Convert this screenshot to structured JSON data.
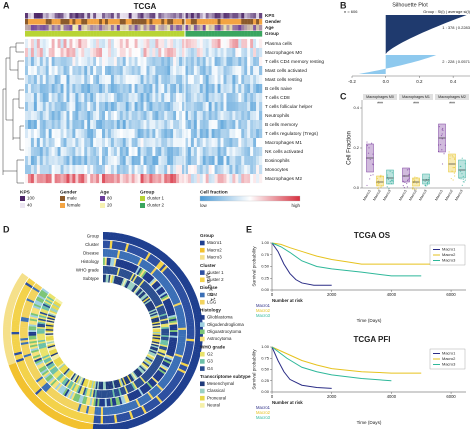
{
  "panels": [
    "A",
    "B",
    "C",
    "D",
    "E"
  ],
  "chart_data": [
    {
      "type": "heatmap",
      "title": "TCGA",
      "annotation_rows": [
        "KPS",
        "Gender",
        "Age",
        "Group"
      ],
      "rows": [
        "Plasma cells",
        "Macrophages M0",
        "T cells CD4 memory resting",
        "Mast cells activated",
        "Mast cells resting",
        "B cells naive",
        "T cells CD8",
        "T cells follicular helper",
        "Neutrophils",
        "B cells memory",
        "T cells regulatory (Tregs)",
        "Macrophages M1",
        "NK cells activated",
        "Eosinophils",
        "Monocytes",
        "Macrophages M2"
      ],
      "legend": [
        {
          "title": "KPS",
          "labels": [
            "100",
            "40"
          ],
          "colors": [
            "#4b2466",
            "#ece6f2"
          ]
        },
        {
          "title": "Gender",
          "labels": [
            "male",
            "female"
          ],
          "colors": [
            "#8b5a2b",
            "#f3a443"
          ]
        },
        {
          "title": "Age",
          "labels": [
            "80",
            "20"
          ],
          "colors": [
            "#6a3d9a",
            "#f6f1b2"
          ]
        },
        {
          "title": "Group",
          "labels": [
            "cluster 1",
            "cluster 2"
          ],
          "colors": [
            "#b8d435",
            "#3aa55f"
          ]
        }
      ],
      "scale": {
        "title": "Cell fraction",
        "labels": [
          "low",
          "high"
        ],
        "colors": [
          "#4a9ad6",
          "#ffffff",
          "#d7303f"
        ]
      }
    },
    {
      "type": "silhouette",
      "title": "Silhouette Plot",
      "subtitle": "n = 606",
      "header": "Group : Si(i) | average si(i)",
      "groups": [
        {
          "label": "1 : 378 | 0.2283",
          "color": "#1f3a6e"
        },
        {
          "label": "2 : 228 | 0.0571",
          "color": "#8ec9ee"
        }
      ],
      "xlim": [
        -0.2,
        0.5
      ],
      "xticks": [
        -0.2,
        {
          "value": 0,
          "label": "0.0"
        },
        0.2,
        0.4
      ]
    },
    {
      "type": "box",
      "ylabel": "Cell Fraction",
      "categories": [
        "Macrophages M0",
        "Macrophages M1",
        "Macrophages M2"
      ],
      "annotations": [
        "***",
        "***",
        "***"
      ],
      "series": [
        {
          "name": "Macro1",
          "color": "#7a3c9e",
          "q1": [
            0.08,
            0.03,
            0.18
          ],
          "median": [
            0.15,
            0.06,
            0.25
          ],
          "q3": [
            0.22,
            0.1,
            0.32
          ]
        },
        {
          "name": "Macro2",
          "color": "#e8c52a",
          "q1": [
            0.01,
            0.01,
            0.08
          ],
          "median": [
            0.03,
            0.03,
            0.12
          ],
          "q3": [
            0.06,
            0.05,
            0.17
          ]
        },
        {
          "name": "Macro3",
          "color": "#3ab0a0",
          "q1": [
            0.02,
            0.02,
            0.05
          ],
          "median": [
            0.05,
            0.04,
            0.09
          ],
          "q3": [
            0.09,
            0.07,
            0.14
          ]
        }
      ],
      "ylim": [
        0,
        0.4
      ],
      "yticks": [
        {
          "value": 0,
          "label": "0.0"
        },
        0.2,
        0.4
      ]
    },
    {
      "type": "circos",
      "rings": [
        "Group",
        "Cluster",
        "Disease",
        "Histology",
        "WHO grade",
        "Subtype"
      ],
      "arc_labels": [
        "M a c r o 1",
        "M a c r o 2",
        "M a c r o 3"
      ],
      "legend": [
        {
          "title": "Group",
          "items": [
            {
              "label": "Macro1",
              "color": "#1f3f8f"
            },
            {
              "label": "Macro2",
              "color": "#f2c12e"
            },
            {
              "label": "Macro3",
              "color": "#f5e08a"
            }
          ]
        },
        {
          "title": "Cluster",
          "items": [
            {
              "label": "cluster 1",
              "color": "#2c4fa0"
            },
            {
              "label": "cluster 2",
              "color": "#f3d24a"
            }
          ]
        },
        {
          "title": "Disease",
          "items": [
            {
              "label": "GBM",
              "color": "#3b6fb6"
            },
            {
              "label": "LGG",
              "color": "#f2d35e"
            }
          ]
        },
        {
          "title": "Histology",
          "items": [
            {
              "label": "Glioblastoma",
              "color": "#1e3a8a"
            },
            {
              "label": "Oligodendroglioma",
              "color": "#9fd0e0"
            },
            {
              "label": "Oligoastrocytoma",
              "color": "#7cc576"
            },
            {
              "label": "Astrocytoma",
              "color": "#f6e27a"
            }
          ]
        },
        {
          "title": "WHO grade",
          "items": [
            {
              "label": "G2",
              "color": "#e9e36b"
            },
            {
              "label": "G3",
              "color": "#6cc0a8"
            },
            {
              "label": "G4",
              "color": "#2a4d8f"
            }
          ]
        },
        {
          "title": "Transcriptome subtype",
          "items": [
            {
              "label": "Mesenchymal",
              "color": "#1f3a7a"
            },
            {
              "label": "Classical",
              "color": "#9ad0c2"
            },
            {
              "label": "Proneural",
              "color": "#e8d84a"
            },
            {
              "label": "Neural",
              "color": "#f5f0a8"
            }
          ]
        }
      ]
    },
    {
      "type": "km",
      "title": "TCGA OS",
      "xlabel": "Time (Days)",
      "ylabel": "Survival probability",
      "risk_title": "Number at risk",
      "legend": "upper right",
      "xlim": [
        0,
        6500
      ],
      "xticks": [
        0,
        2000,
        4000,
        6000
      ],
      "ylim": [
        0,
        1
      ],
      "yticks": [
        {
          "value": 0,
          "label": "0.00"
        },
        0.25,
        {
          "value": 0.5,
          "label": "0.50"
        },
        0.75,
        {
          "value": 1,
          "label": "1.00"
        }
      ],
      "series": [
        {
          "name": "Macro1",
          "color": "#2b2d86",
          "x": [
            0,
            200,
            400,
            600,
            800,
            1000,
            1400,
            2000
          ],
          "values": [
            1,
            0.82,
            0.55,
            0.35,
            0.22,
            0.15,
            0.1,
            0.1
          ]
        },
        {
          "name": "Macro2",
          "color": "#e6c21e",
          "x": [
            0,
            300,
            600,
            1000,
            1500,
            2000,
            2500,
            3000,
            4000,
            5000,
            6000
          ],
          "values": [
            1,
            0.97,
            0.9,
            0.82,
            0.72,
            0.65,
            0.6,
            0.55,
            0.55,
            0.55,
            0.55
          ]
        },
        {
          "name": "Macro3",
          "color": "#2fb89a",
          "x": [
            0,
            300,
            600,
            1000,
            1500,
            2000,
            3000,
            4000,
            5000
          ],
          "values": [
            1,
            0.92,
            0.8,
            0.62,
            0.5,
            0.45,
            0.38,
            0.3,
            0.3
          ]
        }
      ]
    },
    {
      "type": "km",
      "title": "TCGA PFI",
      "xlabel": "Time (Days)",
      "ylabel": "Survival probability",
      "risk_title": "Number at risk",
      "legend": "upper right",
      "xlim": [
        0,
        6500
      ],
      "xticks": [
        0,
        2000,
        4000,
        6000
      ],
      "ylim": [
        0,
        1
      ],
      "yticks": [
        {
          "value": 0,
          "label": "0.00"
        },
        0.25,
        {
          "value": 0.5,
          "label": "0.50"
        },
        0.75,
        {
          "value": 1,
          "label": "1.00"
        }
      ],
      "series": [
        {
          "name": "Macro1",
          "color": "#2b2d86",
          "x": [
            0,
            200,
            400,
            600,
            1000,
            1500,
            2000
          ],
          "values": [
            1,
            0.7,
            0.45,
            0.28,
            0.15,
            0.1,
            0.08
          ]
        },
        {
          "name": "Macro2",
          "color": "#e6c21e",
          "x": [
            0,
            500,
            1000,
            1500,
            2000,
            3000,
            4000,
            5000
          ],
          "values": [
            1,
            0.85,
            0.7,
            0.6,
            0.52,
            0.45,
            0.42,
            0.42
          ]
        },
        {
          "name": "Macro3",
          "color": "#2fb89a",
          "x": [
            0,
            500,
            1000,
            1500,
            2000,
            3000,
            4000
          ],
          "values": [
            1,
            0.75,
            0.55,
            0.45,
            0.38,
            0.3,
            0.25
          ]
        }
      ]
    }
  ]
}
